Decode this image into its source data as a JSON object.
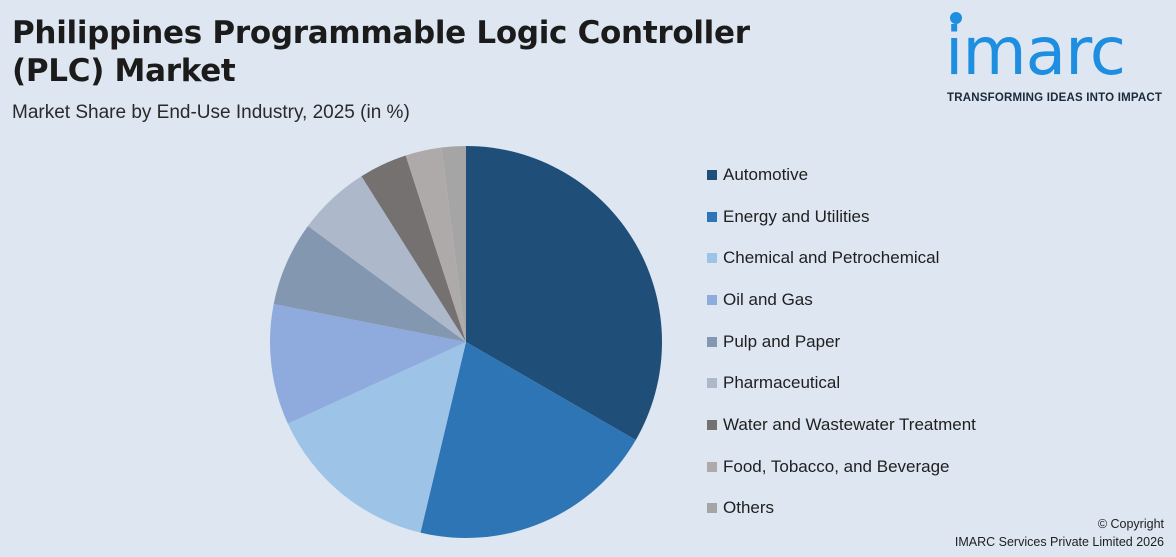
{
  "header": {
    "title": "Philippines Programmable Logic Controller (PLC) Market",
    "subtitle": "Market Share by End-Use Industry, 2025 (in %)"
  },
  "logo": {
    "wordmark": "imarc",
    "tagline": "TRANSFORMING IDEAS INTO IMPACT",
    "color": "#1e8ee0"
  },
  "footer": {
    "copyright_line1": "© Copyright",
    "copyright_line2": "IMARC Services Private Limited 2026"
  },
  "chart_data": {
    "type": "pie",
    "title": "Philippines Programmable Logic Controller (PLC) Market",
    "subtitle": "Market Share by End-Use Industry, 2025 (in %)",
    "legend_position": "right",
    "slices": [
      {
        "name": "Automotive",
        "value": 33.5,
        "color": "#1f4e79"
      },
      {
        "name": "Energy and Utilities",
        "value": 20.5,
        "color": "#2e75b6"
      },
      {
        "name": "Chemical and Petrochemical",
        "value": 14.5,
        "color": "#9dc3e6"
      },
      {
        "name": "Oil and Gas",
        "value": 10.0,
        "color": "#8faadc"
      },
      {
        "name": "Pulp and Paper",
        "value": 7.0,
        "color": "#8497b0"
      },
      {
        "name": "Pharmaceutical",
        "value": 6.0,
        "color": "#adb9ca"
      },
      {
        "name": "Water and Wastewater Treatment",
        "value": 4.0,
        "color": "#767171"
      },
      {
        "name": "Food, Tobacco, and Beverage",
        "value": 3.0,
        "color": "#aeaaaa"
      },
      {
        "name": "Others",
        "value": 2.0,
        "color": "#a5a5a5"
      }
    ]
  }
}
